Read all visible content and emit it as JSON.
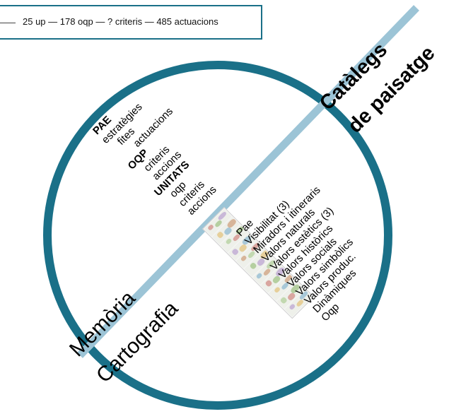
{
  "header": {
    "summary": "25 up — 178 oqp — ? criteris — 485 actuacions"
  },
  "diagram": {
    "title_line1": "Catàlegs",
    "title_line2": "de paisatge",
    "lower_label_1": "Memòria",
    "lower_label_2": "Cartografia"
  },
  "memoria_items": [
    {
      "label": "PAE",
      "bold": true,
      "level": 0
    },
    {
      "label": "estratègies",
      "bold": false,
      "level": 0
    },
    {
      "label": "fites",
      "bold": false,
      "level": 1
    },
    {
      "label": "actuacions",
      "bold": false,
      "level": 2
    },
    {
      "label": "OQP",
      "bold": true,
      "level": 0
    },
    {
      "label": "criteris",
      "bold": false,
      "level": 1
    },
    {
      "label": "accions",
      "bold": false,
      "level": 1
    },
    {
      "label": "UNITATS",
      "bold": true,
      "level": 0
    },
    {
      "label": "oqp",
      "bold": false,
      "level": 1
    },
    {
      "label": "criteris",
      "bold": false,
      "level": 1
    },
    {
      "label": "accions",
      "bold": false,
      "level": 1
    }
  ],
  "cartografia_items": [
    "Pae",
    "Visibilitat (3)",
    "Miradors i itineraris",
    "Valors naturals",
    "Valors estètics (3)",
    "Valors històrics",
    "Valors socials",
    "Valors simbòlics",
    "Valors produc.",
    "Dinàmiques",
    "Oqp"
  ],
  "colors": {
    "circle": "#1a7088",
    "diagonal": "#9cc4d6",
    "box_border": "#1a7088"
  }
}
